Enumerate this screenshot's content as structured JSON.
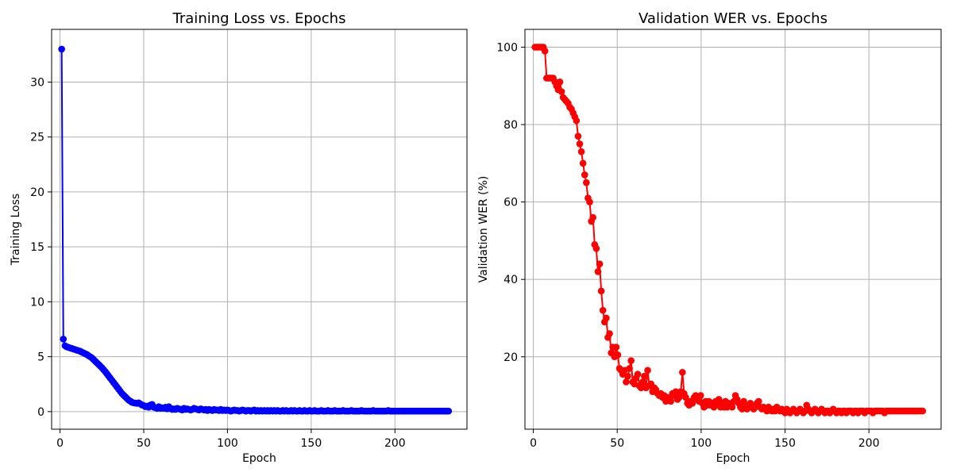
{
  "chart_data": [
    {
      "type": "line",
      "title": "Training Loss vs. Epochs",
      "xlabel": "Epoch",
      "ylabel": "Training Loss",
      "xlim": [
        -5,
        243
      ],
      "ylim": [
        -1.6,
        34.8
      ],
      "xticks": [
        0,
        50,
        100,
        150,
        200
      ],
      "yticks": [
        0,
        5,
        10,
        15,
        20,
        25,
        30
      ],
      "grid": true,
      "color": "#0000ff",
      "marker": "circle",
      "x_range": [
        1,
        232
      ],
      "series": [
        {
          "values": [
            33.0,
            6.6,
            6.0,
            5.9,
            5.85,
            5.8,
            5.75,
            5.7,
            5.65,
            5.6,
            5.55,
            5.5,
            5.42,
            5.35,
            5.28,
            5.2,
            5.1,
            5.0,
            4.9,
            4.75,
            4.6,
            4.45,
            4.3,
            4.15,
            4.0,
            3.82,
            3.65,
            3.45,
            3.25,
            3.05,
            2.85,
            2.65,
            2.45,
            2.25,
            2.05,
            1.85,
            1.65,
            1.5,
            1.35,
            1.2,
            1.05,
            0.95,
            0.85,
            0.8,
            0.78,
            0.75,
            0.8,
            0.7,
            0.6,
            0.55,
            0.45,
            0.5,
            0.4,
            0.6,
            0.65,
            0.4,
            0.35,
            0.3,
            0.45,
            0.3,
            0.35,
            0.3,
            0.4,
            0.25,
            0.45,
            0.3,
            0.2,
            0.25,
            0.2,
            0.3,
            0.25,
            0.2,
            0.15,
            0.3,
            0.2,
            0.25,
            0.2,
            0.15,
            0.2,
            0.3,
            0.25,
            0.2,
            0.15,
            0.25,
            0.2,
            0.15,
            0.2,
            0.1,
            0.2,
            0.15,
            0.1,
            0.2,
            0.15,
            0.15,
            0.1,
            0.2,
            0.1,
            0.15,
            0.1,
            0.15,
            0.1,
            0.05,
            0.1,
            0.15,
            0.1,
            0.1,
            0.05,
            0.1,
            0.15,
            0.1,
            0.05,
            0.1,
            0.1,
            0.05,
            0.1,
            0.15,
            0.05,
            0.1,
            0.05,
            0.1,
            0.05,
            0.1,
            0.05,
            0.1,
            0.05,
            0.1,
            0.05,
            0.1,
            0.05,
            0.1,
            0.05,
            0.05,
            0.1,
            0.05,
            0.1,
            0.05,
            0.05,
            0.1,
            0.05,
            0.1,
            0.05,
            0.05,
            0.1,
            0.05,
            0.05,
            0.1,
            0.05,
            0.05,
            0.1,
            0.05,
            0.05,
            0.1,
            0.05,
            0.05,
            0.05,
            0.1,
            0.05,
            0.05,
            0.05,
            0.1,
            0.05,
            0.05,
            0.05,
            0.1,
            0.05,
            0.05,
            0.05,
            0.05,
            0.1,
            0.05,
            0.05,
            0.05,
            0.05,
            0.1,
            0.05,
            0.05,
            0.05,
            0.05,
            0.05,
            0.1,
            0.05,
            0.05,
            0.05,
            0.05,
            0.05,
            0.05,
            0.1,
            0.05,
            0.05,
            0.05,
            0.05,
            0.05,
            0.05,
            0.05,
            0.05,
            0.1,
            0.05,
            0.05,
            0.05,
            0.05,
            0.05,
            0.05,
            0.05,
            0.05,
            0.05,
            0.05,
            0.05,
            0.05,
            0.05,
            0.05,
            0.05,
            0.05,
            0.05,
            0.05,
            0.05,
            0.05,
            0.05,
            0.05,
            0.05,
            0.05,
            0.05,
            0.05,
            0.05,
            0.05,
            0.05,
            0.05,
            0.05,
            0.05,
            0.05,
            0.05,
            0.05,
            0.05
          ]
        }
      ]
    },
    {
      "type": "line",
      "title": "Validation WER vs. Epochs",
      "xlabel": "Epoch",
      "ylabel": "Validation WER (%)",
      "xlim": [
        -5,
        243
      ],
      "ylim": [
        1.3,
        104.6
      ],
      "xticks": [
        0,
        50,
        100,
        150,
        200
      ],
      "yticks": [
        20,
        40,
        60,
        80,
        100
      ],
      "grid": true,
      "color": "#ff0000",
      "marker": "circle",
      "x_range": [
        1,
        232
      ],
      "series": [
        {
          "values": [
            100.0,
            100.0,
            100.0,
            100.0,
            100.0,
            100.0,
            99.0,
            92.0,
            92.0,
            92.0,
            92.0,
            92.0,
            91.0,
            90.0,
            89.0,
            91.0,
            88.5,
            87.0,
            86.5,
            86.0,
            85.5,
            84.5,
            84.0,
            83.0,
            82.0,
            81.0,
            77.0,
            75.0,
            73.0,
            70.0,
            67.0,
            65.0,
            61.0,
            60.0,
            55.0,
            56.0,
            49.0,
            48.0,
            42.0,
            44.0,
            37.0,
            32.0,
            29.0,
            30.0,
            25.0,
            26.0,
            21.0,
            22.5,
            20.0,
            22.5,
            20.5,
            17.0,
            16.5,
            15.5,
            16.5,
            13.5,
            15.0,
            17.0,
            19.0,
            13.5,
            13.0,
            14.5,
            15.5,
            12.5,
            12.0,
            13.5,
            15.0,
            12.0,
            16.5,
            12.5,
            13.0,
            11.0,
            12.0,
            11.5,
            10.5,
            10.0,
            10.5,
            9.5,
            10.0,
            8.5,
            9.5,
            9.0,
            8.5,
            10.5,
            10.0,
            11.0,
            9.0,
            9.5,
            11.0,
            16.0,
            10.5,
            9.5,
            8.0,
            7.5,
            8.5,
            8.0,
            9.5,
            10.0,
            9.0,
            8.5,
            10.0,
            8.0,
            7.0,
            8.5,
            7.5,
            8.5,
            7.5,
            8.0,
            7.0,
            8.5,
            7.5,
            9.0,
            7.0,
            8.0,
            7.0,
            8.5,
            7.0,
            8.0,
            7.5,
            7.0,
            8.5,
            10.0,
            9.0,
            8.0,
            7.0,
            6.5,
            8.5,
            7.5,
            6.5,
            7.0,
            8.0,
            7.0,
            6.5,
            7.0,
            8.0,
            8.5,
            7.0,
            6.5,
            7.0,
            6.5,
            6.0,
            7.0,
            6.5,
            6.0,
            6.5,
            6.0,
            7.0,
            6.5,
            6.0,
            6.5,
            6.0,
            5.5,
            6.5,
            6.0,
            5.5,
            6.0,
            6.5,
            6.0,
            5.5,
            6.0,
            6.5,
            6.0,
            5.5,
            6.0,
            7.5,
            6.5,
            6.0,
            5.5,
            6.0,
            6.5,
            6.0,
            5.5,
            6.0,
            6.5,
            6.0,
            5.5,
            6.0,
            6.0,
            5.5,
            6.0,
            6.5,
            6.0,
            5.5,
            6.0,
            6.0,
            5.5,
            6.0,
            6.0,
            5.5,
            6.0,
            6.0,
            6.0,
            5.5,
            6.0,
            6.0,
            5.5,
            6.0,
            6.0,
            6.0,
            5.5,
            6.0,
            6.0,
            6.0,
            6.0,
            5.5,
            6.0,
            6.0,
            6.0,
            6.0,
            6.0,
            6.0,
            5.5,
            6.0,
            6.0,
            6.0,
            6.0,
            6.0,
            6.0,
            6.0,
            6.0,
            6.0,
            6.0,
            6.0,
            6.0,
            6.0,
            6.0,
            6.0,
            6.0,
            6.0,
            6.0,
            6.0,
            6.0,
            6.0,
            6.0,
            6.0
          ]
        }
      ]
    }
  ]
}
